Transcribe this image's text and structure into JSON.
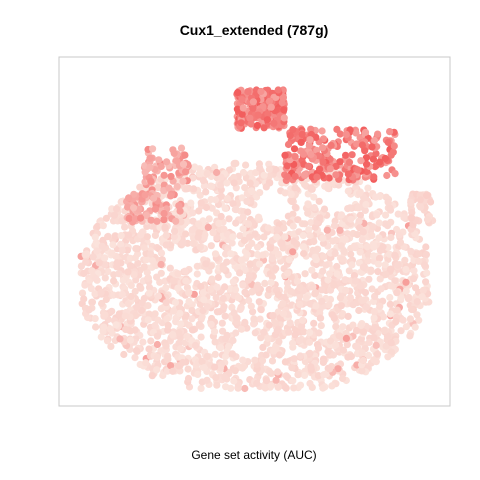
{
  "chart_data": {
    "type": "scatter",
    "title": "Cux1_extended (787g)",
    "xlabel": "Gene set activity (AUC)",
    "ylabel": "",
    "axes_visible": false,
    "grid": false,
    "legend": "none",
    "color_scale": {
      "low": "#fbe3dc",
      "high": "#f25a5a",
      "mid_grey": "#e3e3e3"
    },
    "plot_box_color": "#c8c8c8",
    "x_range": [
      0,
      100
    ],
    "y_range": [
      0,
      100
    ],
    "point_count": "many (≈3000 cells)",
    "regions": [
      {
        "name": "bulk",
        "x": [
          5,
          95
        ],
        "y": [
          5,
          70
        ],
        "activity": "low"
      },
      {
        "name": "top-center cluster",
        "x": [
          45,
          58
        ],
        "y": [
          82,
          94
        ],
        "activity": "high"
      },
      {
        "name": "top-right cluster",
        "x": [
          58,
          88
        ],
        "y": [
          66,
          82
        ],
        "activity": "high"
      },
      {
        "name": "left-upper patch",
        "x": [
          20,
          32
        ],
        "y": [
          62,
          76
        ],
        "activity": "medium"
      },
      {
        "name": "left-mid patch",
        "x": [
          15,
          30
        ],
        "y": [
          53,
          62
        ],
        "activity": "medium"
      }
    ]
  }
}
